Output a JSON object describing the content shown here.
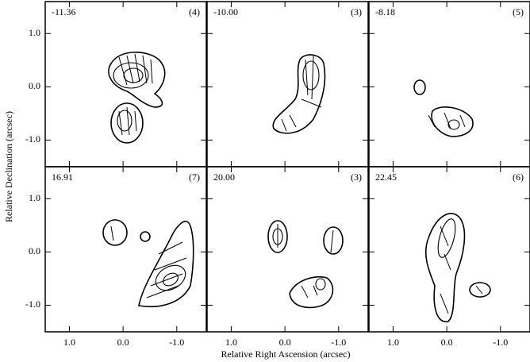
{
  "chart_data": {
    "type": "contour-grid",
    "x_label": "Relative Right Ascension (arcsec)",
    "y_label": "Relative Declination (arcsec)",
    "xlim": [
      1.45,
      -1.55
    ],
    "ylim": [
      -1.5,
      1.6
    ],
    "xticks": [
      {
        "value": 1,
        "label": "1.0"
      },
      {
        "value": 0,
        "label": "0.0"
      },
      {
        "value": -1,
        "label": "-1.0"
      }
    ],
    "yticks": [
      {
        "value": 1,
        "label": "1.0"
      },
      {
        "value": 0,
        "label": "0.0"
      },
      {
        "value": -1,
        "label": "-1.0"
      }
    ],
    "panels": [
      {
        "velocity": "-11.36",
        "count": "(4)"
      },
      {
        "velocity": "-10.00",
        "count": "(3)"
      },
      {
        "velocity": "-8.18",
        "count": "(5)"
      },
      {
        "velocity": "16.91",
        "count": "(7)"
      },
      {
        "velocity": "20.00",
        "count": "(3)"
      },
      {
        "velocity": "22.45",
        "count": "(6)"
      }
    ]
  }
}
